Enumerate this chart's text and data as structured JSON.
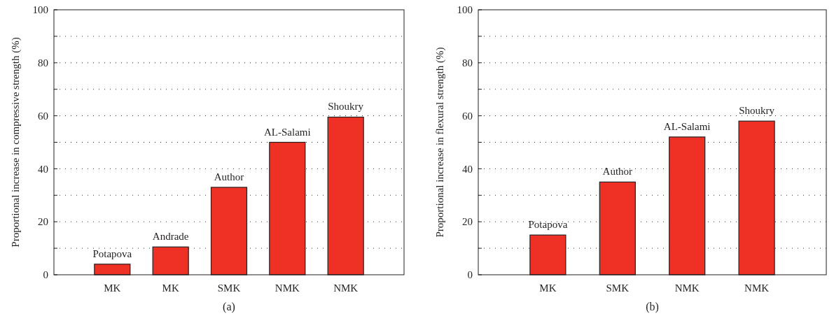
{
  "chart_data": [
    {
      "type": "bar",
      "title": "(a)",
      "ylabel": "Proportional increase in compressive strength (%)",
      "categories": [
        "MK",
        "MK",
        "SMK",
        "NMK",
        "NMK"
      ],
      "values": [
        4,
        10.5,
        33,
        50,
        59.5
      ],
      "color": "#ee3124",
      "ylim": [
        0,
        100
      ],
      "yticks": [
        0,
        {
          "value": 10,
          "label": null
        },
        20,
        {
          "value": 30,
          "label": null
        },
        40,
        {
          "value": 50,
          "label": null
        },
        60,
        {
          "value": 70,
          "label": null
        },
        80,
        {
          "value": 90,
          "label": null
        },
        100
      ],
      "grid": "y",
      "value_labels": [
        "Potapova",
        "Andrade",
        "Author",
        "AL-Salami",
        "Shoukry"
      ]
    },
    {
      "type": "bar",
      "title": "(b)",
      "ylabel": "Proportional increase in flexural strength (%)",
      "categories": [
        "MK",
        "SMK",
        "NMK",
        "NMK"
      ],
      "values": [
        15,
        35,
        52,
        58
      ],
      "color": "#ee3124",
      "ylim": [
        0,
        100
      ],
      "yticks": [
        0,
        {
          "value": 10,
          "label": null
        },
        20,
        {
          "value": 30,
          "label": null
        },
        40,
        {
          "value": 50,
          "label": null
        },
        60,
        {
          "value": 70,
          "label": null
        },
        80,
        {
          "value": 90,
          "label": null
        },
        100
      ],
      "grid": "y",
      "value_labels": [
        "Potapova",
        "Author",
        "AL-Salami",
        "Shoukry"
      ]
    }
  ]
}
